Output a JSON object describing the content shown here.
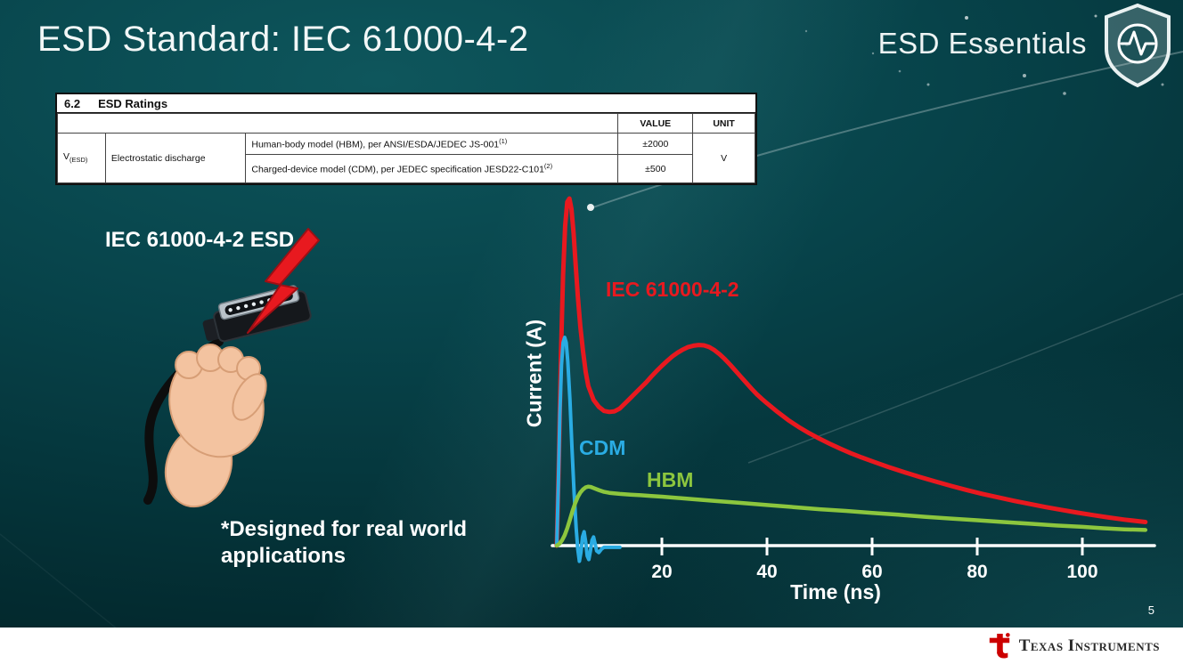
{
  "slide": {
    "title": "ESD Standard: IEC 61000-4-2",
    "brand": "ESD Essentials",
    "page_number": "5",
    "footer_logo_text": "Texas Instruments"
  },
  "ratings_table": {
    "section_no": "6.2",
    "section_title": "ESD Ratings",
    "col_value": "VALUE",
    "col_unit": "UNIT",
    "param_symbol": "V",
    "param_sub": "(ESD)",
    "param_name": "Electrostatic discharge",
    "rows": [
      {
        "desc": "Human-body model (HBM), per ANSI/ESDA/JEDEC JS-001",
        "sup": "(1)",
        "value": "±2000"
      },
      {
        "desc": "Charged-device model (CDM), per JEDEC specification JESD22-C101",
        "sup": "(2)",
        "value": "±500"
      }
    ],
    "unit": "V"
  },
  "left": {
    "caption": "IEC 61000-4-2 ESD",
    "note_line1": "*Designed for real world",
    "note_line2": "applications"
  },
  "chart_data": {
    "type": "line",
    "title": "",
    "xlabel": "Time (ns)",
    "ylabel": "Current (A)",
    "x_ticks": [
      20,
      40,
      60,
      80,
      100
    ],
    "x_range": [
      0,
      112
    ],
    "grid": false,
    "legend_position": "inline-labels",
    "axis_color": "#ffffff",
    "series": [
      {
        "name": "IEC 61000-4-2",
        "color": "#e8191f",
        "width": 5,
        "points": [
          [
            0,
            0
          ],
          [
            0.4,
            0.25
          ],
          [
            0.8,
            0.55
          ],
          [
            1.2,
            0.78
          ],
          [
            1.6,
            0.92
          ],
          [
            2.0,
            0.99
          ],
          [
            2.4,
            1.0
          ],
          [
            2.8,
            0.97
          ],
          [
            3.2,
            0.9
          ],
          [
            3.6,
            0.81
          ],
          [
            4.0,
            0.72
          ],
          [
            4.5,
            0.63
          ],
          [
            5.0,
            0.56
          ],
          [
            5.5,
            0.5
          ],
          [
            6.0,
            0.46
          ],
          [
            7.0,
            0.42
          ],
          [
            8.0,
            0.4
          ],
          [
            9.0,
            0.388
          ],
          [
            10,
            0.385
          ],
          [
            11,
            0.387
          ],
          [
            12,
            0.395
          ],
          [
            13,
            0.41
          ],
          [
            14,
            0.425
          ],
          [
            15,
            0.44
          ],
          [
            16,
            0.455
          ],
          [
            17,
            0.47
          ],
          [
            18,
            0.487
          ],
          [
            19,
            0.503
          ],
          [
            20,
            0.518
          ],
          [
            21,
            0.532
          ],
          [
            22,
            0.545
          ],
          [
            23,
            0.556
          ],
          [
            24,
            0.565
          ],
          [
            25,
            0.572
          ],
          [
            26,
            0.576
          ],
          [
            27,
            0.578
          ],
          [
            28,
            0.577
          ],
          [
            29,
            0.572
          ],
          [
            30,
            0.563
          ],
          [
            31,
            0.551
          ],
          [
            32,
            0.537
          ],
          [
            33,
            0.521
          ],
          [
            34,
            0.504
          ],
          [
            35,
            0.487
          ],
          [
            36,
            0.47
          ],
          [
            37,
            0.453
          ],
          [
            38,
            0.437
          ],
          [
            39,
            0.423
          ],
          [
            40,
            0.41
          ],
          [
            42,
            0.385
          ],
          [
            44,
            0.362
          ],
          [
            46,
            0.342
          ],
          [
            48,
            0.324
          ],
          [
            50,
            0.308
          ],
          [
            52,
            0.293
          ],
          [
            54,
            0.279
          ],
          [
            56,
            0.266
          ],
          [
            58,
            0.254
          ],
          [
            60,
            0.243
          ],
          [
            63,
            0.227
          ],
          [
            66,
            0.212
          ],
          [
            69,
            0.198
          ],
          [
            72,
            0.185
          ],
          [
            75,
            0.172
          ],
          [
            78,
            0.16
          ],
          [
            81,
            0.149
          ],
          [
            84,
            0.139
          ],
          [
            87,
            0.129
          ],
          [
            90,
            0.12
          ],
          [
            93,
            0.111
          ],
          [
            96,
            0.103
          ],
          [
            99,
            0.095
          ],
          [
            102,
            0.088
          ],
          [
            105,
            0.081
          ],
          [
            108,
            0.075
          ],
          [
            112,
            0.068
          ]
        ]
      },
      {
        "name": "CDM",
        "color": "#2aace3",
        "width": 4,
        "points": [
          [
            0,
            0
          ],
          [
            0.3,
            0.18
          ],
          [
            0.6,
            0.38
          ],
          [
            0.9,
            0.52
          ],
          [
            1.2,
            0.585
          ],
          [
            1.5,
            0.6
          ],
          [
            1.8,
            0.585
          ],
          [
            2.1,
            0.53
          ],
          [
            2.5,
            0.42
          ],
          [
            2.9,
            0.28
          ],
          [
            3.3,
            0.15
          ],
          [
            3.7,
            0.05
          ],
          [
            4.0,
            -0.01
          ],
          [
            4.3,
            -0.045
          ],
          [
            4.6,
            -0.02
          ],
          [
            4.9,
            0.025
          ],
          [
            5.2,
            0.04
          ],
          [
            5.5,
            0.01
          ],
          [
            5.8,
            -0.03
          ],
          [
            6.1,
            -0.04
          ],
          [
            6.4,
            -0.015
          ],
          [
            6.7,
            0.015
          ],
          [
            7.0,
            0.025
          ],
          [
            7.3,
            0.005
          ],
          [
            7.6,
            -0.015
          ],
          [
            8.0,
            -0.02
          ],
          [
            8.5,
            -0.01
          ],
          [
            9.0,
            -0.005
          ],
          [
            10,
            -0.005
          ],
          [
            11,
            -0.005
          ],
          [
            12,
            -0.005
          ]
        ]
      },
      {
        "name": "HBM",
        "color": "#8cc63e",
        "width": 4.5,
        "points": [
          [
            0,
            0
          ],
          [
            0.5,
            0.005
          ],
          [
            1,
            0.015
          ],
          [
            1.5,
            0.03
          ],
          [
            2,
            0.05
          ],
          [
            2.5,
            0.075
          ],
          [
            3,
            0.1
          ],
          [
            3.5,
            0.122
          ],
          [
            4,
            0.14
          ],
          [
            4.5,
            0.153
          ],
          [
            5,
            0.162
          ],
          [
            5.5,
            0.168
          ],
          [
            6,
            0.17
          ],
          [
            6.5,
            0.169
          ],
          [
            7,
            0.166
          ],
          [
            8,
            0.16
          ],
          [
            9,
            0.155
          ],
          [
            10,
            0.152
          ],
          [
            12,
            0.149
          ],
          [
            14,
            0.147
          ],
          [
            16,
            0.145
          ],
          [
            18,
            0.143
          ],
          [
            20,
            0.141
          ],
          [
            25,
            0.135
          ],
          [
            30,
            0.129
          ],
          [
            35,
            0.123
          ],
          [
            40,
            0.117
          ],
          [
            45,
            0.111
          ],
          [
            50,
            0.105
          ],
          [
            55,
            0.1
          ],
          [
            60,
            0.094
          ],
          [
            65,
            0.089
          ],
          [
            70,
            0.083
          ],
          [
            75,
            0.078
          ],
          [
            80,
            0.073
          ],
          [
            85,
            0.068
          ],
          [
            90,
            0.063
          ],
          [
            95,
            0.058
          ],
          [
            100,
            0.054
          ],
          [
            104,
            0.05
          ],
          [
            108,
            0.047
          ],
          [
            112,
            0.045
          ]
        ]
      }
    ]
  }
}
